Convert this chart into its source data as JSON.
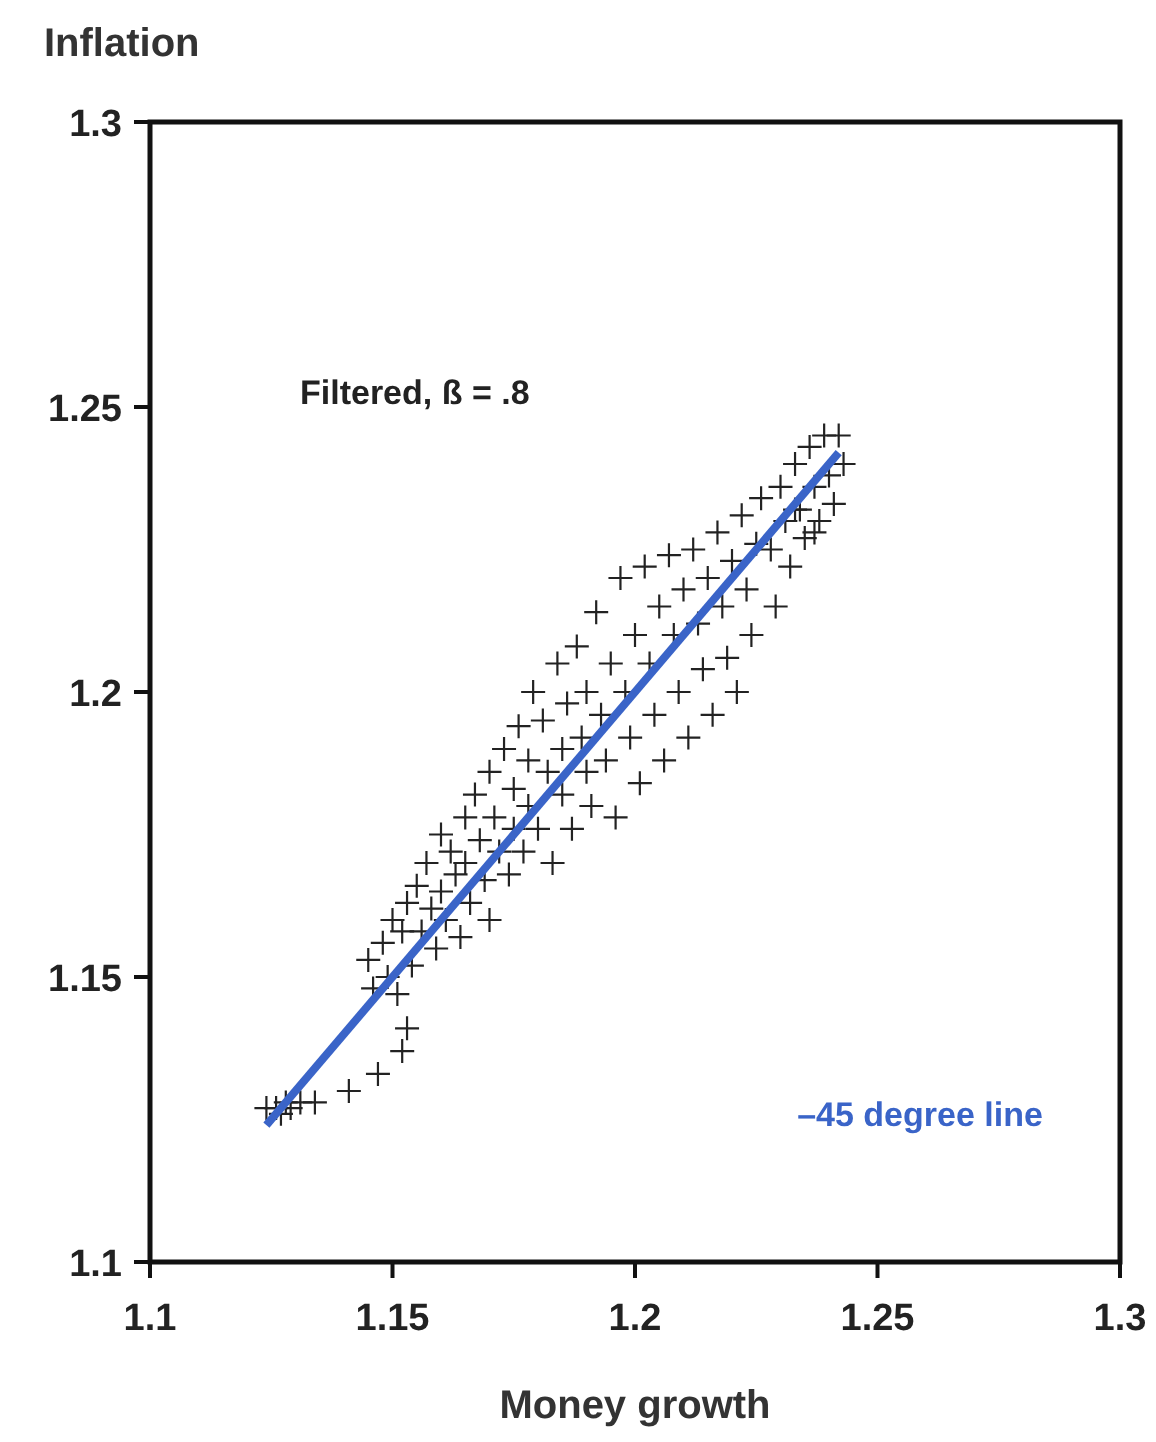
{
  "chart_data": {
    "type": "scatter",
    "xlabel": "Money growth",
    "ylabel": "Inflation",
    "xlim": [
      1.1,
      1.3
    ],
    "xticks": [
      1.1,
      1.15,
      1.2,
      1.25,
      1.3
    ],
    "ylim": [
      1.1,
      1.3
    ],
    "yticks": [
      1.1,
      1.15,
      1.2,
      1.25,
      1.3
    ],
    "grid": false,
    "annotations": [
      "Filtered, ß = .8"
    ],
    "series": [
      {
        "marker": "cross",
        "color": "#222222",
        "x": [
          1.124,
          1.126,
          1.127,
          1.128,
          1.129,
          1.131,
          1.134,
          1.141,
          1.147,
          1.152,
          1.153,
          1.145,
          1.146,
          1.148,
          1.149,
          1.15,
          1.151,
          1.152,
          1.153,
          1.154,
          1.155,
          1.156,
          1.157,
          1.158,
          1.159,
          1.16,
          1.16,
          1.161,
          1.162,
          1.163,
          1.164,
          1.165,
          1.165,
          1.166,
          1.167,
          1.168,
          1.169,
          1.17,
          1.17,
          1.171,
          1.172,
          1.173,
          1.174,
          1.175,
          1.175,
          1.176,
          1.177,
          1.178,
          1.178,
          1.179,
          1.18,
          1.181,
          1.182,
          1.183,
          1.184,
          1.185,
          1.185,
          1.186,
          1.187,
          1.188,
          1.189,
          1.19,
          1.19,
          1.191,
          1.192,
          1.193,
          1.194,
          1.195,
          1.196,
          1.197,
          1.198,
          1.199,
          1.2,
          1.201,
          1.202,
          1.203,
          1.204,
          1.205,
          1.206,
          1.207,
          1.208,
          1.209,
          1.21,
          1.211,
          1.212,
          1.213,
          1.214,
          1.215,
          1.216,
          1.217,
          1.218,
          1.219,
          1.22,
          1.221,
          1.222,
          1.223,
          1.224,
          1.225,
          1.226,
          1.228,
          1.229,
          1.23,
          1.231,
          1.232,
          1.233,
          1.234,
          1.235,
          1.236,
          1.237,
          1.238,
          1.239,
          1.24,
          1.241,
          1.242,
          1.243,
          1.237,
          1.233
        ],
        "values": [
          1.127,
          1.127,
          1.126,
          1.128,
          1.127,
          1.128,
          1.128,
          1.13,
          1.133,
          1.137,
          1.141,
          1.153,
          1.148,
          1.156,
          1.15,
          1.16,
          1.147,
          1.158,
          1.163,
          1.152,
          1.166,
          1.158,
          1.17,
          1.162,
          1.155,
          1.175,
          1.165,
          1.16,
          1.172,
          1.168,
          1.157,
          1.178,
          1.17,
          1.163,
          1.182,
          1.174,
          1.167,
          1.186,
          1.16,
          1.178,
          1.172,
          1.19,
          1.168,
          1.183,
          1.176,
          1.194,
          1.172,
          1.188,
          1.18,
          1.2,
          1.176,
          1.195,
          1.186,
          1.17,
          1.205,
          1.19,
          1.182,
          1.198,
          1.176,
          1.208,
          1.192,
          1.186,
          1.2,
          1.18,
          1.214,
          1.196,
          1.188,
          1.205,
          1.178,
          1.22,
          1.2,
          1.192,
          1.21,
          1.184,
          1.222,
          1.205,
          1.196,
          1.215,
          1.188,
          1.224,
          1.21,
          1.2,
          1.218,
          1.192,
          1.225,
          1.212,
          1.204,
          1.22,
          1.196,
          1.228,
          1.215,
          1.206,
          1.223,
          1.2,
          1.231,
          1.218,
          1.21,
          1.226,
          1.234,
          1.225,
          1.215,
          1.236,
          1.23,
          1.222,
          1.24,
          1.232,
          1.227,
          1.243,
          1.236,
          1.23,
          1.245,
          1.238,
          1.233,
          1.245,
          1.24,
          1.228,
          1.232
        ]
      },
      {
        "type": "line",
        "name": "–45 degree line",
        "color": "#3a64c8",
        "x": [
          1.124,
          1.242
        ],
        "values": [
          1.124,
          1.242
        ]
      }
    ]
  }
}
